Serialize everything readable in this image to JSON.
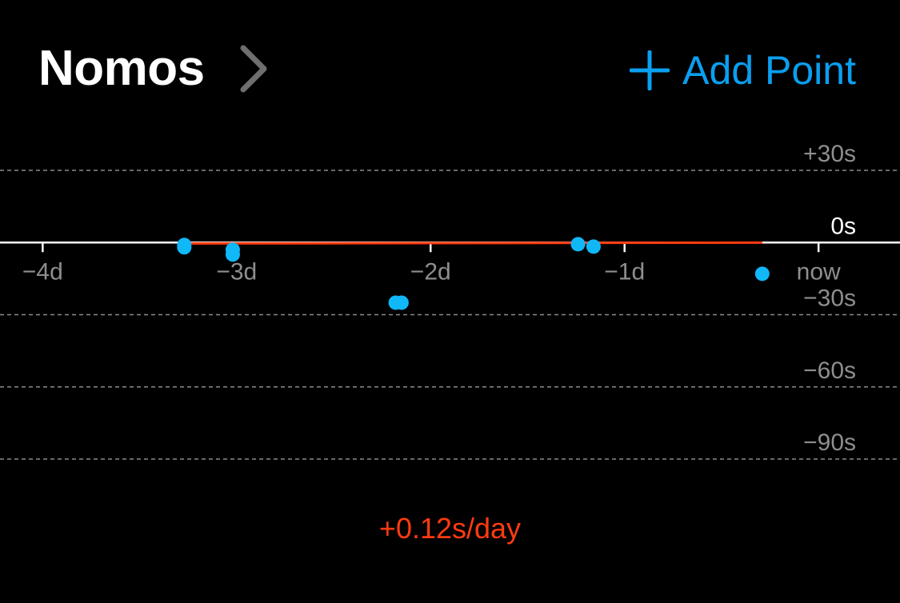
{
  "header": {
    "title": "Nomos",
    "add_point_label": "Add Point"
  },
  "icons": {
    "disclosure": "chevron-right-icon",
    "add": "plus-icon"
  },
  "colors": {
    "background": "#000000",
    "accent": "#0a9ff0",
    "point": "#10b8f8",
    "trend": "#ff3b10",
    "grid": "#8a8a8a",
    "axis_label": "#8e8e8e",
    "zero_line": "#ffffff"
  },
  "rate_label": "+0.12s/day",
  "chart_data": {
    "type": "scatter",
    "x_ticks": [
      {
        "value": -4,
        "label": "−4d"
      },
      {
        "value": -3,
        "label": "−3d"
      },
      {
        "value": -2,
        "label": "−2d"
      },
      {
        "value": -1,
        "label": "−1d"
      },
      {
        "value": 0,
        "label": "now"
      }
    ],
    "y_ticks": [
      {
        "value": 30,
        "label": "+30s"
      },
      {
        "value": 0,
        "label": "0s"
      },
      {
        "value": -30,
        "label": "−30s"
      },
      {
        "value": -60,
        "label": "−60s"
      },
      {
        "value": -90,
        "label": "−90s"
      }
    ],
    "xlim": [
      -4.22,
      0.42
    ],
    "ylim": [
      -90,
      30
    ],
    "grid": true,
    "points": [
      {
        "x": -3.27,
        "y": -1.0
      },
      {
        "x": -3.27,
        "y": -2.0
      },
      {
        "x": -3.02,
        "y": -3.0
      },
      {
        "x": -3.02,
        "y": -5.0
      },
      {
        "x": -2.18,
        "y": -25.0
      },
      {
        "x": -2.15,
        "y": -25.0
      },
      {
        "x": -1.24,
        "y": -0.7
      },
      {
        "x": -1.16,
        "y": -1.7
      },
      {
        "x": -0.29,
        "y": -13.0
      }
    ],
    "trend": {
      "x": [
        -3.27,
        -0.29
      ],
      "y": [
        -0.4,
        -0.04
      ]
    }
  }
}
